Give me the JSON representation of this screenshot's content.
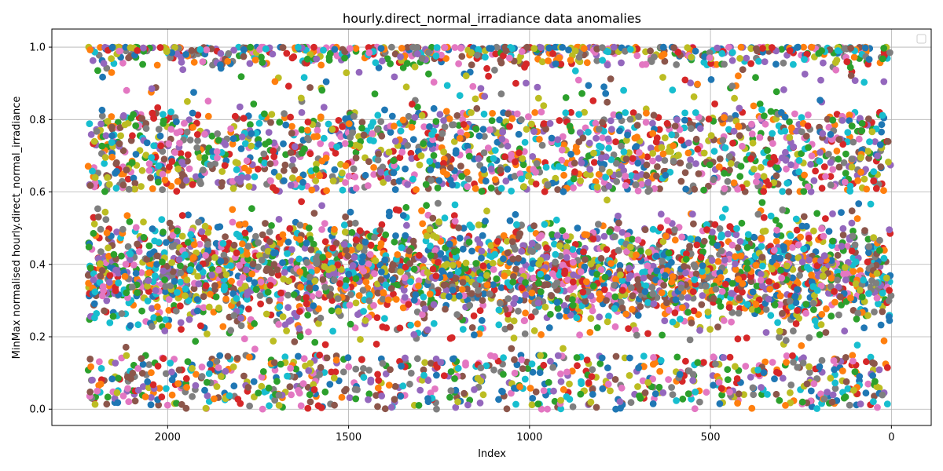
{
  "chart_data": {
    "type": "scatter",
    "title": "hourly.direct_normal_irradiance data anomalies",
    "xlabel": "Index",
    "ylabel": "MinMax normalised hourly.direct_normal_irradiance",
    "xlim": [
      2320,
      -110
    ],
    "ylim": [
      -0.045,
      1.05
    ],
    "x_inverted": true,
    "x_ticks": [
      2000,
      1500,
      1000,
      500,
      0
    ],
    "x_tick_labels": [
      "2000",
      "1500",
      "1000",
      "500",
      "0"
    ],
    "y_ticks": [
      0.0,
      0.2,
      0.4,
      0.6,
      0.8,
      1.0
    ],
    "y_tick_labels": [
      "0.0",
      "0.2",
      "0.4",
      "0.6",
      "0.8",
      "1.0"
    ],
    "grid": true,
    "legend": "top-right (empty)",
    "x_range_data": [
      0,
      2220
    ],
    "point_count": 6000,
    "colors": [
      "#1f77b4",
      "#ff7f0e",
      "#2ca02c",
      "#d62728",
      "#9467bd",
      "#8c564b",
      "#e377c2",
      "#7f7f7f",
      "#bcbd22",
      "#17becf"
    ],
    "value_distribution": [
      {
        "y_range": [
          0.95,
          1.0
        ],
        "share": 0.1
      },
      {
        "y_range": [
          0.82,
          0.95
        ],
        "share": 0.02
      },
      {
        "y_range": [
          0.6,
          0.82
        ],
        "share": 0.25
      },
      {
        "y_range": [
          0.15,
          0.6
        ],
        "share": 0.5
      },
      {
        "y_range": [
          0.0,
          0.15
        ],
        "share": 0.13
      }
    ]
  }
}
